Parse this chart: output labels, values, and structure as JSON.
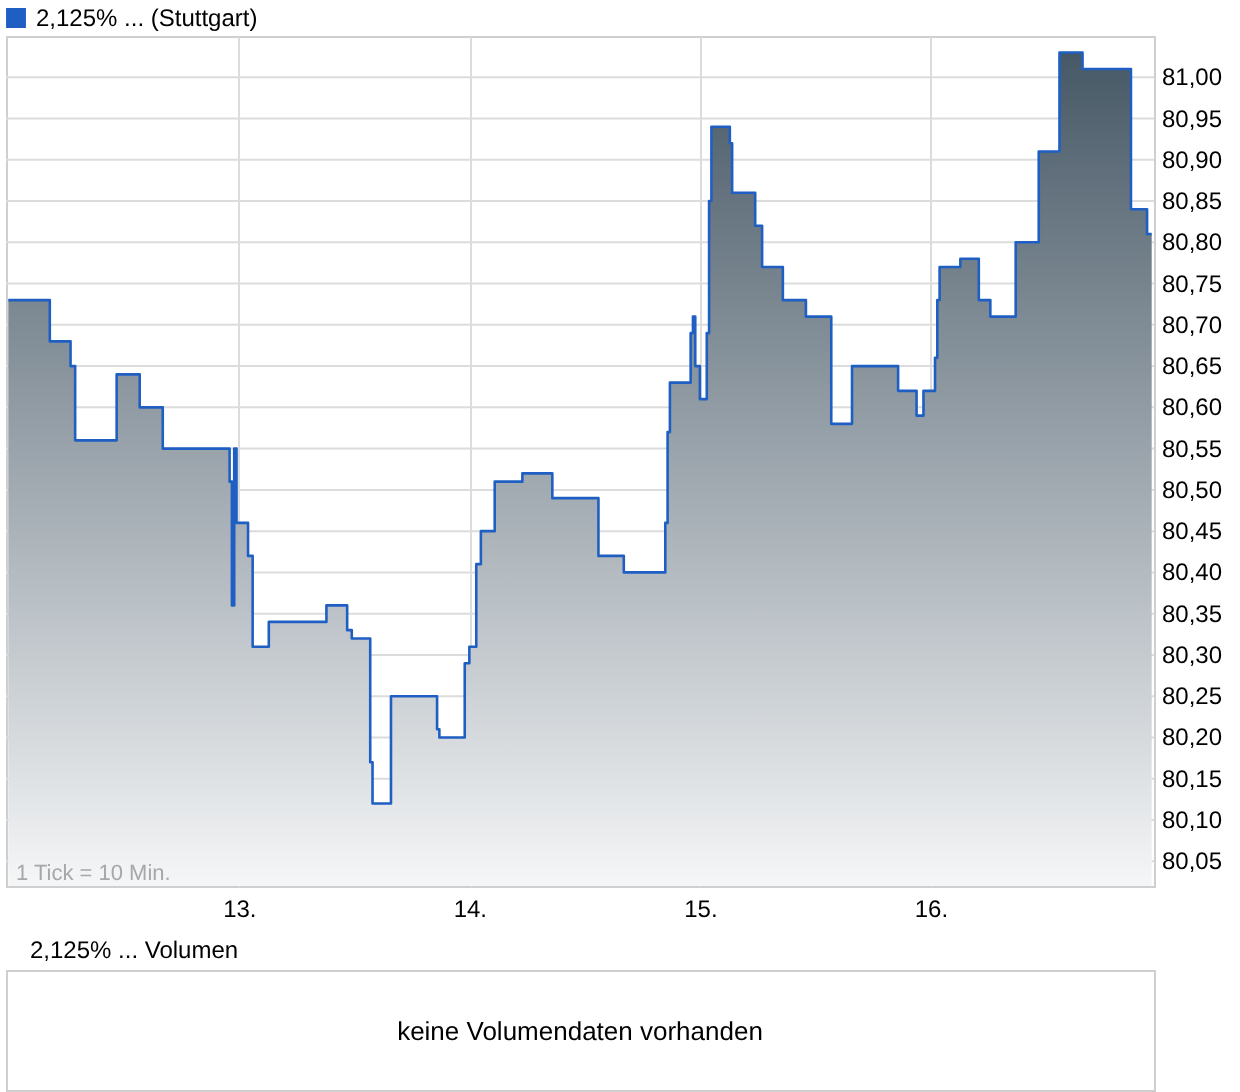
{
  "chart_data": [
    {
      "type": "step",
      "x": [
        12.0,
        12.18,
        12.27,
        12.29,
        12.47,
        12.57,
        12.67,
        12.96,
        12.97,
        12.98,
        12.99,
        13.04,
        13.06,
        13.13,
        13.38,
        13.47,
        13.49,
        13.57,
        13.58,
        13.66,
        13.86,
        13.87,
        13.98,
        14.0,
        14.03,
        14.05,
        14.11,
        14.23,
        14.36,
        14.56,
        14.67,
        14.85,
        14.86,
        14.87,
        14.96,
        14.97,
        14.98,
        15.0,
        15.03,
        15.04,
        15.05,
        15.13,
        15.14,
        15.24,
        15.27,
        15.36,
        15.46,
        15.57,
        15.66,
        15.86,
        15.94,
        15.97,
        16.02,
        16.03,
        16.04,
        16.13,
        16.21,
        16.26,
        16.37,
        16.47,
        16.56,
        16.66,
        16.87,
        16.94,
        16.96
      ],
      "series": [
        {
          "name": "2,125% ... (Stuttgart)",
          "color": "#1f5fc4",
          "values": [
            80.73,
            80.68,
            80.65,
            80.56,
            80.64,
            80.6,
            80.55,
            80.51,
            80.36,
            80.55,
            80.46,
            80.42,
            80.31,
            80.34,
            80.36,
            80.33,
            80.32,
            80.17,
            80.12,
            80.25,
            80.21,
            80.2,
            80.29,
            80.31,
            80.41,
            80.45,
            80.51,
            80.52,
            80.49,
            80.42,
            80.4,
            80.46,
            80.57,
            80.63,
            80.69,
            80.71,
            80.65,
            80.61,
            80.69,
            80.85,
            80.94,
            80.92,
            80.86,
            80.82,
            80.77,
            80.73,
            80.71,
            80.58,
            80.65,
            80.62,
            80.59,
            80.62,
            80.66,
            80.73,
            80.77,
            80.78,
            80.73,
            80.71,
            80.8,
            80.91,
            81.03,
            81.01,
            80.84,
            80.81,
            80.81
          ]
        }
      ],
      "xlim": [
        11.99,
        16.97
      ],
      "xticks": [
        {
          "value": 13,
          "label": "13."
        },
        {
          "value": 14,
          "label": "14."
        },
        {
          "value": 15,
          "label": "15."
        },
        {
          "value": 16,
          "label": "16."
        }
      ],
      "ylim": [
        80.02,
        81.05
      ],
      "yticks": [
        {
          "value": 80.05,
          "label": "80,05"
        },
        {
          "value": 80.1,
          "label": "80,10"
        },
        {
          "value": 80.15,
          "label": "80,15"
        },
        {
          "value": 80.2,
          "label": "80,20"
        },
        {
          "value": 80.25,
          "label": "80,25"
        },
        {
          "value": 80.3,
          "label": "80,30"
        },
        {
          "value": 80.35,
          "label": "80,35"
        },
        {
          "value": 80.4,
          "label": "80,40"
        },
        {
          "value": 80.45,
          "label": "80,45"
        },
        {
          "value": 80.5,
          "label": "80,50"
        },
        {
          "value": 80.55,
          "label": "80,55"
        },
        {
          "value": 80.6,
          "label": "80,60"
        },
        {
          "value": 80.65,
          "label": "80,65"
        },
        {
          "value": 80.7,
          "label": "80,70"
        },
        {
          "value": 80.75,
          "label": "80,75"
        },
        {
          "value": 80.8,
          "label": "80,80"
        },
        {
          "value": 80.85,
          "label": "80,85"
        },
        {
          "value": 80.9,
          "label": "80,90"
        },
        {
          "value": 80.95,
          "label": "80,95"
        },
        {
          "value": 81,
          "label": "81,00"
        }
      ],
      "grid": true,
      "legend": "top left",
      "marker": "none",
      "line_style": "solid",
      "annotations": [
        "1 Tick = 10 Min."
      ]
    },
    {
      "type": "other",
      "title": "2,125% ... Volumen",
      "annotations": [
        "keine Volumendaten vorhanden"
      ]
    }
  ]
}
